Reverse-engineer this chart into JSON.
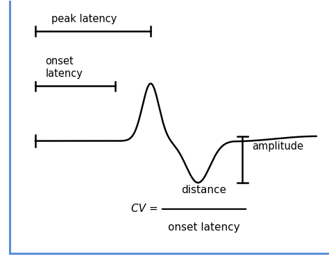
{
  "background_color": "#ffffff",
  "border_color": "#5b8dd9",
  "signal_color": "#000000",
  "annotation_color": "#000000",
  "peak_latency_label": "peak latency",
  "onset_latency_label": "onset\nlatency",
  "amplitude_label": "amplitude",
  "cv_numerator": "distance",
  "cv_denominator": "onset latency",
  "cv_eq": "CV = ",
  "fig_width": 4.74,
  "fig_height": 3.77,
  "dpi": 100
}
